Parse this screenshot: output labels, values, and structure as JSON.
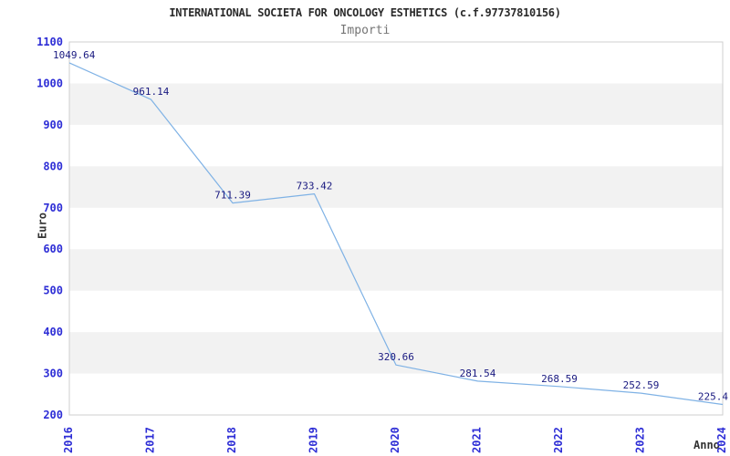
{
  "chart_data": {
    "type": "line",
    "title": "INTERNATIONAL SOCIETA FOR ONCOLOGY ESTHETICS (c.f.97737810156)",
    "subtitle": "Importi",
    "xlabel": "Anno",
    "ylabel": "Euro",
    "categories": [
      "2016",
      "2017",
      "2018",
      "2019",
      "2020",
      "2021",
      "2022",
      "2023",
      "2024"
    ],
    "values": [
      1049.64,
      961.14,
      711.39,
      733.42,
      320.66,
      281.54,
      268.59,
      252.59,
      225.4
    ],
    "point_labels": [
      "1049.64",
      "961.14",
      "711.39",
      "733.42",
      "320.66",
      "281.54",
      "268.59",
      "252.59",
      "225.4"
    ],
    "y_ticks": [
      "1100",
      "1000",
      "900",
      "800",
      "700",
      "600",
      "500",
      "400",
      "300",
      "200"
    ],
    "ylim": [
      200,
      1100
    ],
    "ytick_step": 100,
    "grid": "alternating-horizontal-bands",
    "legend": "none",
    "colors": {
      "line": "#7fb2e5",
      "tick_label": "#2e2ed6",
      "point_label": "#191980",
      "band": "#f2f2f2",
      "plot_border": "#cfcfcf",
      "title": "#2b2b2b",
      "subtitle": "#757575",
      "axis_title": "#333333"
    }
  }
}
